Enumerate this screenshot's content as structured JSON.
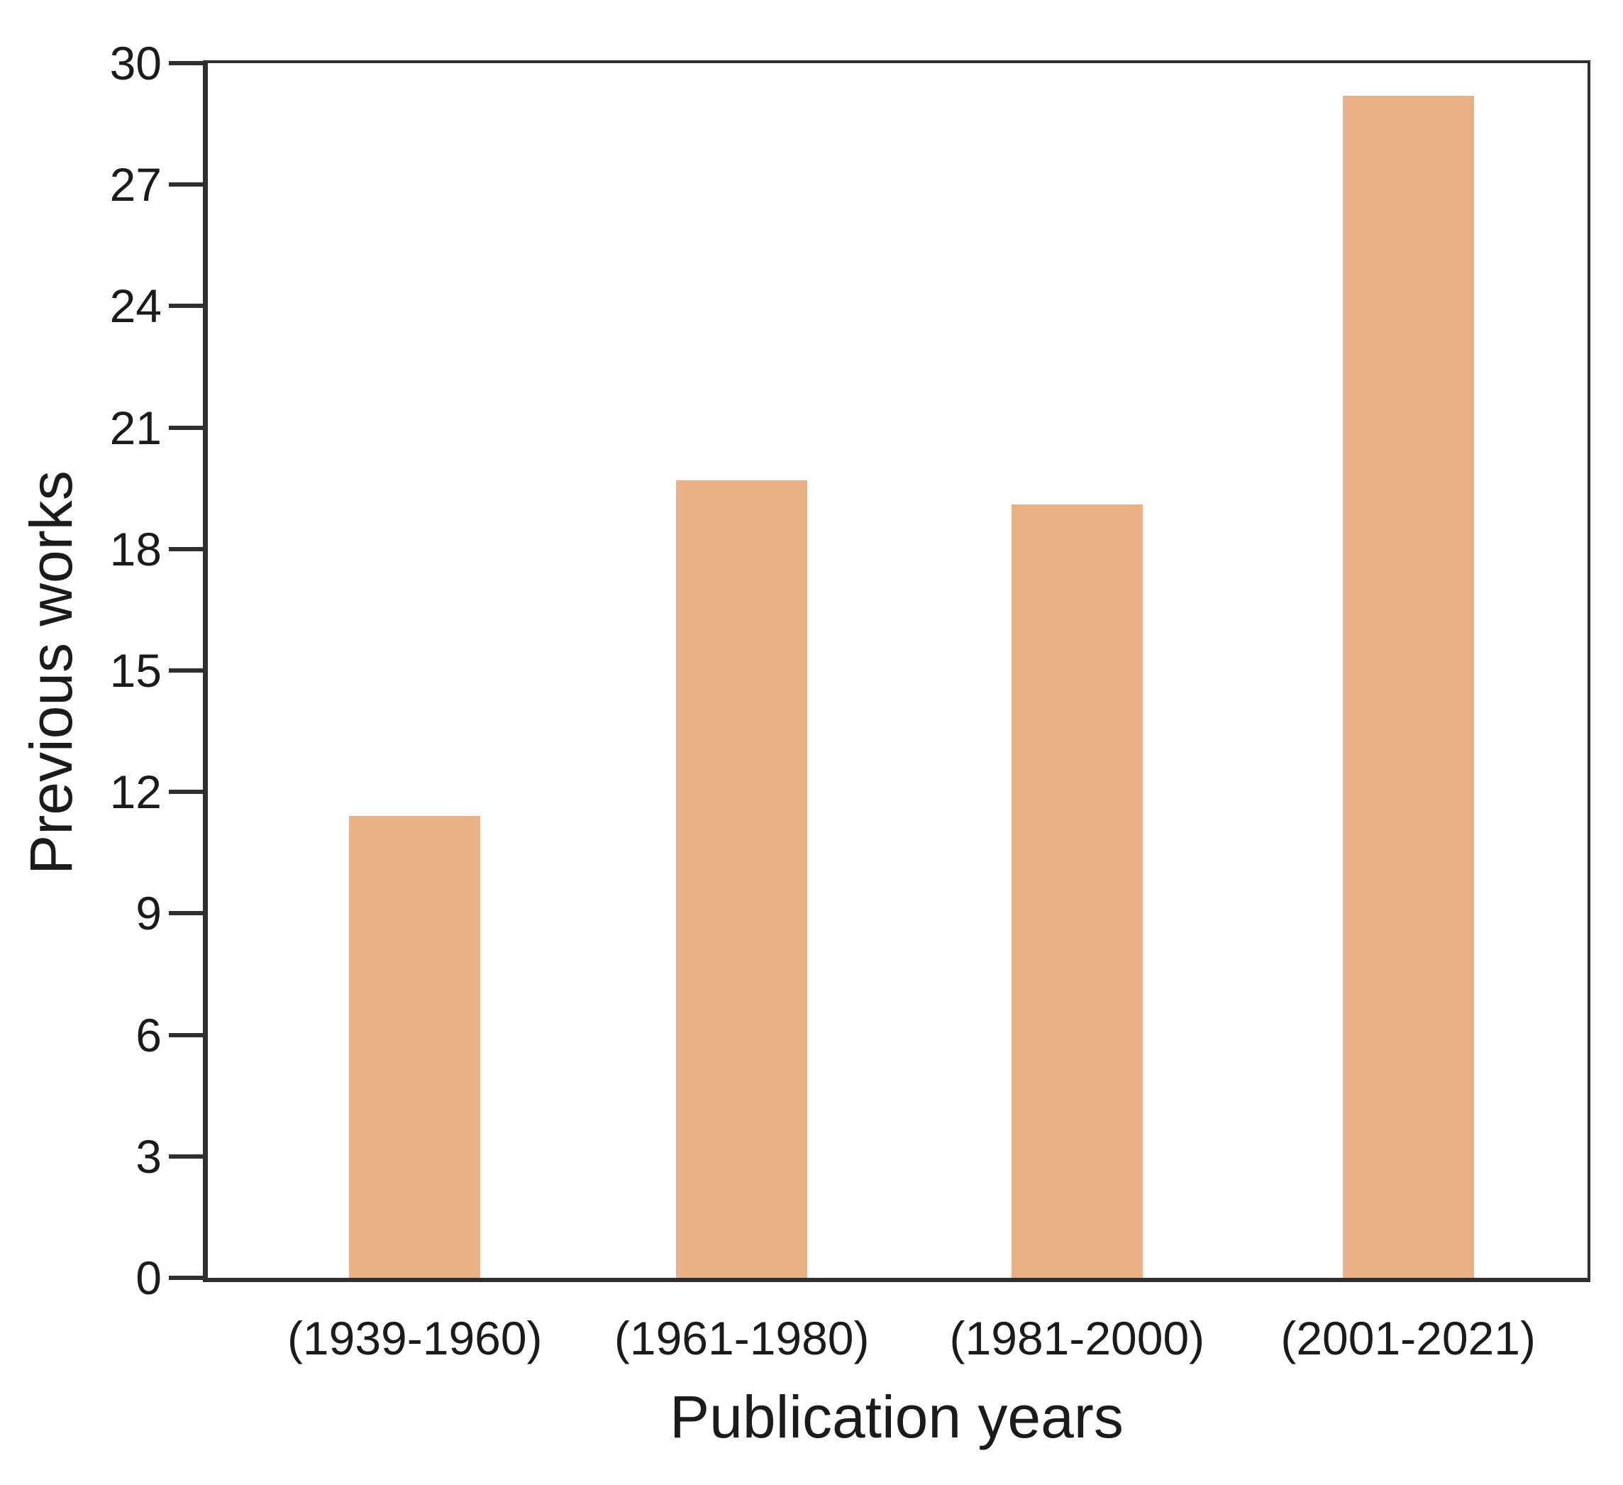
{
  "chart_data": {
    "type": "bar",
    "title": "",
    "categories": [
      "(1939-1960)",
      "(1961-1980)",
      "(1981-2000)",
      "(2001-2021)"
    ],
    "values": [
      11.4,
      19.7,
      19.1,
      29.2
    ],
    "xlabel": "Publication years",
    "ylabel": "Previous works",
    "ylim": [
      0,
      30
    ],
    "yticks": [
      0,
      3,
      6,
      9,
      12,
      15,
      18,
      21,
      24,
      27,
      30
    ],
    "grid": false,
    "legend": "none",
    "frame": "box",
    "bar_color": "#ebb187",
    "axis_color": "#2f2f2f",
    "text_color": "#1b1b1b"
  },
  "layout_hints": {
    "bar_center_percents": [
      15,
      38.7,
      63,
      87
    ],
    "bar_width_percent": 9.5
  }
}
